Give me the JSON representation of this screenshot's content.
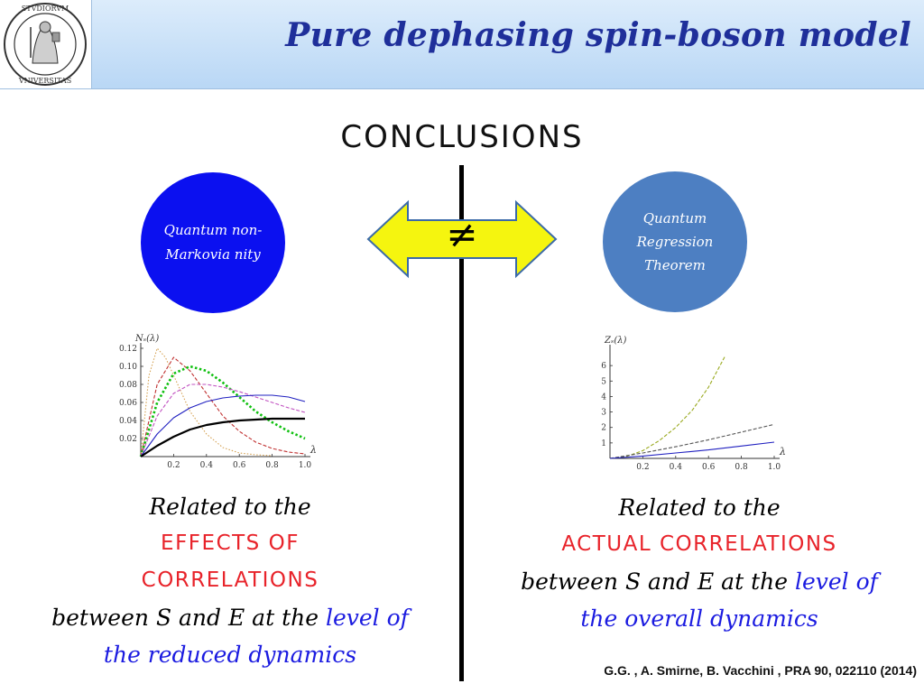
{
  "header": {
    "title": "Pure dephasing spin-boson model",
    "logo_text": "STVDIORVM · MEDIOLANENSIS · VNIVERSITAS"
  },
  "heading": "CONCLUSIONS",
  "left_circle": {
    "label": "Quantum non-Markovia nity",
    "color": "#0b10f0"
  },
  "right_circle": {
    "label": "Quantum Regression Theorem",
    "color": "#4d7fc2"
  },
  "arrow": {
    "symbol": "≠",
    "color": "#f5f50f"
  },
  "left_caption": {
    "line1": "Related to the",
    "line2": "EFFECTS OF",
    "line3": "CORRELATIONS",
    "line4_black": "between S and E at the ",
    "line4_blue": "level of",
    "line5": "the reduced dynamics"
  },
  "right_caption": {
    "line1": "Related to the",
    "line2": "ACTUAL CORRELATIONS",
    "line3_black": "between S and E at the ",
    "line3_blue": "level of",
    "line4": "the overall dynamics"
  },
  "reference": "G.G. , A. Smirne, B. Vacchini , PRA 90, 022110 (2014)",
  "chart_data": [
    {
      "type": "line",
      "ylabel": "Nₛ(λ)",
      "xlabel": "λ",
      "xlim": [
        0,
        1.0
      ],
      "ylim": [
        0,
        0.12
      ],
      "xticks": [
        "0.2",
        "0.4",
        "0.6",
        "0.8",
        "1.0"
      ],
      "yticks": [
        "0.02",
        "0.04",
        "0.06",
        "0.08",
        "0.10",
        "0.12"
      ],
      "series": [
        {
          "style": "dotted",
          "color": "#d4a050",
          "x": [
            0,
            0.05,
            0.1,
            0.15,
            0.2,
            0.3,
            0.4,
            0.5,
            0.6,
            0.7,
            0.8
          ],
          "y": [
            0,
            0.09,
            0.12,
            0.11,
            0.09,
            0.05,
            0.025,
            0.01,
            0.004,
            0.002,
            0.001
          ]
        },
        {
          "style": "dashed",
          "color": "#c03030",
          "x": [
            0,
            0.1,
            0.2,
            0.3,
            0.4,
            0.5,
            0.6,
            0.7,
            0.8,
            0.9,
            1.0
          ],
          "y": [
            0,
            0.08,
            0.11,
            0.095,
            0.07,
            0.045,
            0.028,
            0.016,
            0.009,
            0.005,
            0.003
          ]
        },
        {
          "style": "dotted-bold",
          "color": "#10c010",
          "x": [
            0,
            0.1,
            0.2,
            0.3,
            0.4,
            0.5,
            0.6,
            0.7,
            0.8,
            0.9,
            1.0
          ],
          "y": [
            0,
            0.06,
            0.092,
            0.1,
            0.095,
            0.082,
            0.066,
            0.05,
            0.038,
            0.028,
            0.02
          ]
        },
        {
          "style": "dashed",
          "color": "#c050c0",
          "x": [
            0,
            0.1,
            0.2,
            0.3,
            0.4,
            0.5,
            0.6,
            0.7,
            0.8,
            0.9,
            1.0
          ],
          "y": [
            0,
            0.045,
            0.07,
            0.08,
            0.08,
            0.077,
            0.072,
            0.066,
            0.06,
            0.054,
            0.049
          ]
        },
        {
          "style": "solid",
          "color": "#2020c0",
          "x": [
            0,
            0.1,
            0.2,
            0.3,
            0.4,
            0.5,
            0.6,
            0.7,
            0.8,
            0.9,
            1.0
          ],
          "y": [
            0,
            0.025,
            0.043,
            0.054,
            0.061,
            0.065,
            0.067,
            0.068,
            0.068,
            0.066,
            0.061
          ]
        },
        {
          "style": "solid-bold",
          "color": "#000000",
          "x": [
            0,
            0.1,
            0.2,
            0.3,
            0.4,
            0.5,
            0.6,
            0.7,
            0.8,
            0.9,
            1.0
          ],
          "y": [
            0,
            0.012,
            0.022,
            0.03,
            0.035,
            0.038,
            0.04,
            0.041,
            0.042,
            0.042,
            0.042
          ]
        }
      ]
    },
    {
      "type": "line",
      "ylabel": "Zₛ(λ)",
      "xlabel": "λ",
      "xlim": [
        0,
        1.0
      ],
      "ylim": [
        0,
        7
      ],
      "xticks": [
        "0.2",
        "0.4",
        "0.6",
        "0.8",
        "1.0"
      ],
      "yticks": [
        "1",
        "2",
        "3",
        "4",
        "5",
        "6"
      ],
      "series": [
        {
          "style": "dashed",
          "color": "#9aaa20",
          "x": [
            0,
            0.1,
            0.2,
            0.3,
            0.4,
            0.5,
            0.6,
            0.7
          ],
          "y": [
            0,
            0.12,
            0.5,
            1.15,
            2.0,
            3.1,
            4.6,
            6.6
          ]
        },
        {
          "style": "dashed",
          "color": "#555555",
          "x": [
            0,
            0.2,
            0.4,
            0.6,
            0.8,
            1.0
          ],
          "y": [
            0,
            0.35,
            0.75,
            1.2,
            1.7,
            2.2
          ]
        },
        {
          "style": "solid",
          "color": "#2020c0",
          "x": [
            0,
            0.2,
            0.4,
            0.6,
            0.8,
            1.0
          ],
          "y": [
            0,
            0.15,
            0.35,
            0.55,
            0.8,
            1.05
          ]
        }
      ]
    }
  ]
}
